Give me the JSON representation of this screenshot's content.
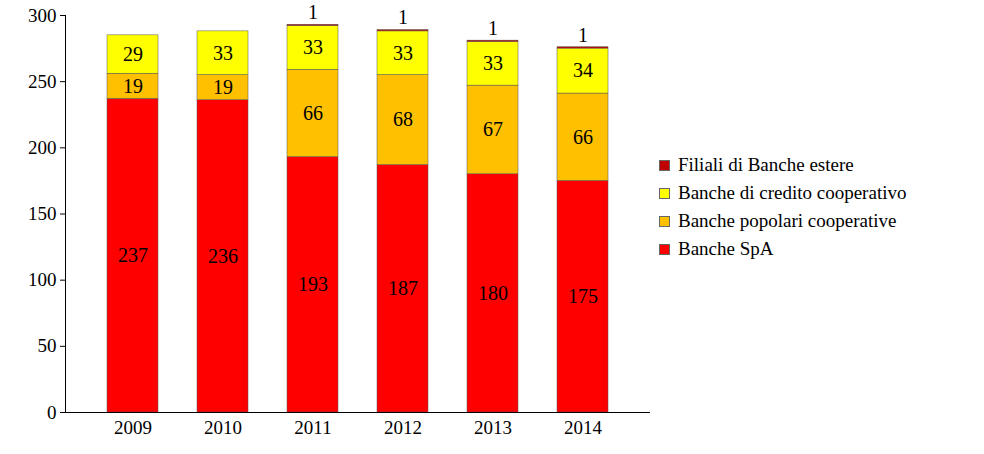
{
  "chart_data": {
    "type": "bar",
    "categories": [
      "2009",
      "2010",
      "2011",
      "2012",
      "2013",
      "2014"
    ],
    "series": [
      {
        "name": "Banche SpA",
        "color": "#FF0000",
        "values": [
          237,
          236,
          193,
          187,
          180,
          175
        ]
      },
      {
        "name": "Banche popolari cooperative",
        "color": "#FFC000",
        "values": [
          19,
          19,
          66,
          68,
          67,
          66
        ]
      },
      {
        "name": "Banche di credito cooperativo",
        "color": "#FFFF00",
        "values": [
          29,
          33,
          33,
          33,
          33,
          34
        ]
      },
      {
        "name": "Filiali di Banche estere",
        "color": "#C00000",
        "values": [
          null,
          null,
          1,
          1,
          1,
          1
        ]
      }
    ],
    "ylim": [
      0,
      300
    ],
    "yticks": [
      0,
      50,
      100,
      150,
      200,
      250,
      300
    ],
    "stacked": true,
    "data_labels": true,
    "legend": "right",
    "grid": false
  }
}
